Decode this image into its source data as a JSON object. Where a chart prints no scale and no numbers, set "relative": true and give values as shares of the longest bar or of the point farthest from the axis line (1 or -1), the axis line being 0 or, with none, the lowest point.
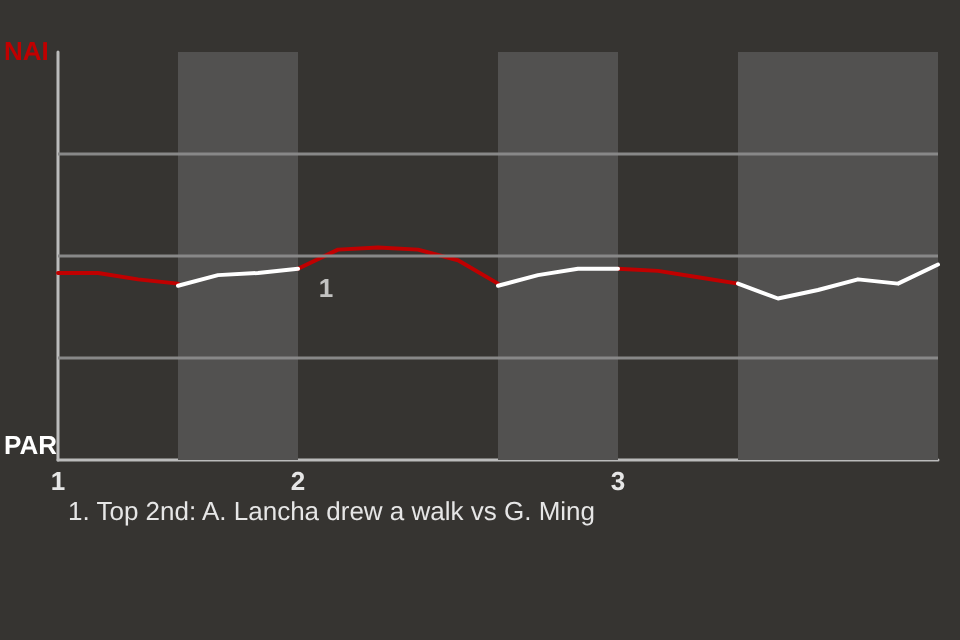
{
  "chart_data": {
    "type": "line",
    "categories": [
      "1",
      null,
      null,
      null,
      null,
      null,
      "2",
      null,
      null,
      null,
      null,
      null,
      null,
      null,
      "3",
      null,
      null,
      null,
      null,
      null,
      null,
      null,
      null
    ],
    "relative": true,
    "series": [
      {
        "name": "NAI",
        "color": "#c00000",
        "values": [
          0.88,
          0.88,
          0.85,
          0.83,
          null,
          null,
          0.9,
          0.99,
          1,
          0.99,
          0.94,
          0.83,
          null,
          null,
          0.9,
          0.89,
          0.86,
          0.83,
          null,
          null,
          null,
          null,
          null
        ]
      },
      {
        "name": "PAR",
        "color": "#ffffff",
        "values": [
          null,
          null,
          null,
          0.82,
          0.87,
          0.88,
          0.9,
          null,
          null,
          null,
          null,
          0.82,
          0.87,
          0.9,
          0.9,
          null,
          null,
          0.83,
          0.76,
          0.8,
          0.85,
          0.83,
          0.92
        ]
      }
    ],
    "ref_lines": [
      {
        "axis": "y",
        "value": 0.48,
        "color": "#888888"
      },
      {
        "axis": "y",
        "value": 0.96,
        "color": "#888888"
      },
      {
        "axis": "y",
        "value": 1.44,
        "color": "#888888"
      }
    ],
    "annotations": [
      {
        "text": "1",
        "x": "2",
        "y": 0.9
      },
      "1. Top 2nd: A. Lancha drew a walk vs G. Ming"
    ]
  }
}
